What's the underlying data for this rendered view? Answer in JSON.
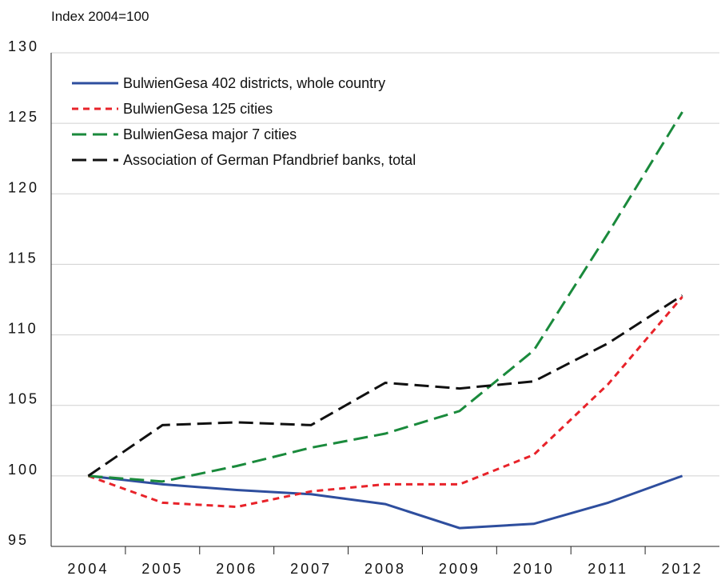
{
  "chart_data": {
    "type": "line",
    "ylabel": "Index  2004=100",
    "categories": [
      "2004",
      "2005",
      "2006",
      "2007",
      "2008",
      "2009",
      "2010",
      "2011",
      "2012"
    ],
    "series": [
      {
        "name": "BulwienGesa 402 districts, whole country",
        "color": "#2e4e9e",
        "linestyle": "solid",
        "values": [
          100,
          99.4,
          99.0,
          98.7,
          98.0,
          96.3,
          96.6,
          98.1,
          100.0
        ]
      },
      {
        "name": "BulwienGesa 125 cities",
        "color": "#e8232a",
        "linestyle": "dashed",
        "values": [
          100,
          98.1,
          97.8,
          98.9,
          99.4,
          99.4,
          101.5,
          106.5,
          112.7
        ]
      },
      {
        "name": "BulwienGesa major 7 cities",
        "color": "#1a8a3c",
        "linestyle": "long-dashed",
        "values": [
          100,
          99.6,
          100.7,
          102.0,
          103.0,
          104.6,
          108.9,
          117.2,
          125.8
        ]
      },
      {
        "name": "Association of German Pfandbrief banks, total",
        "color": "#111111",
        "linestyle": "long-dashed",
        "values": [
          100,
          103.6,
          103.8,
          103.6,
          106.6,
          106.2,
          106.7,
          109.4,
          112.8
        ]
      }
    ],
    "ylim": [
      95,
      130
    ],
    "yticks": [
      95,
      100,
      105,
      110,
      115,
      120,
      125,
      130
    ],
    "grid": true,
    "legend": "upper left"
  }
}
